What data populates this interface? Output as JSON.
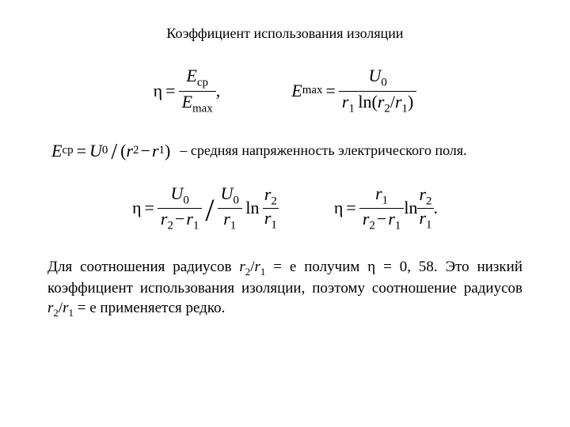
{
  "title": "Коэффициент использования изоляции",
  "f1": {
    "eta": "η",
    "eq": "=",
    "Ecp": "E",
    "cp": "ср",
    "Emax": "E",
    "max": "max",
    "comma": ","
  },
  "f2": {
    "Emax": "E",
    "max": "max",
    "eq": "=",
    "U0": "U",
    "zero": "0",
    "r1": "r",
    "one": "1",
    "ln": "ln",
    "lp": "(",
    "r2": "r",
    "two": "2",
    "slash": "/",
    "r1b": "r",
    "oneb": "1",
    "rp": ")"
  },
  "f3": {
    "Ecp": "E",
    "cp": "ср",
    "eq": "=",
    "U0": "U",
    "zero": "0",
    "slash": "/",
    "lp": "(",
    "r2": "r",
    "two": "2",
    "minus": "−",
    "r1": "r",
    "one": "1",
    "rp": ")"
  },
  "note": "– средняя напряженность электрического поля.",
  "f4": {
    "eta": "η",
    "eq": "=",
    "U0a": "U",
    "zeroa": "0",
    "r2a": "r",
    "twoa": "2",
    "minus": "−",
    "r1a": "r",
    "onea": "1",
    "U0b": "U",
    "zerob": "0",
    "r1b": "r",
    "oneb": "1",
    "ln": "ln",
    "r2c": "r",
    "twoc": "2",
    "r1c": "r",
    "onec": "1"
  },
  "f5": {
    "eta": "η",
    "eq": "=",
    "r1a": "r",
    "onea": "1",
    "r2a": "r",
    "twoa": "2",
    "minus": "−",
    "r1b": "r",
    "oneb": "1",
    "ln": "ln",
    "r2c": "r",
    "twoc": "2",
    "r1c": "r",
    "onec": "1",
    "dot": "."
  },
  "body": {
    "p1_a": "Для соотношения радиусов ",
    "p1_r2": "r",
    "p1_two": "2",
    "p1_slash": "/",
    "p1_r1": "r",
    "p1_one": "1",
    "p1_b": "  = e   получим η = 0, 58. Это низкий коэффициент использования изоляции, поэтому соотношение радиусов  ",
    "p1_r2b": "r",
    "p1_twob": "2",
    "p1_slashb": "/",
    "p1_r1b": "r",
    "p1_oneb": "1",
    "p1_c": " = e  применяется редко."
  }
}
